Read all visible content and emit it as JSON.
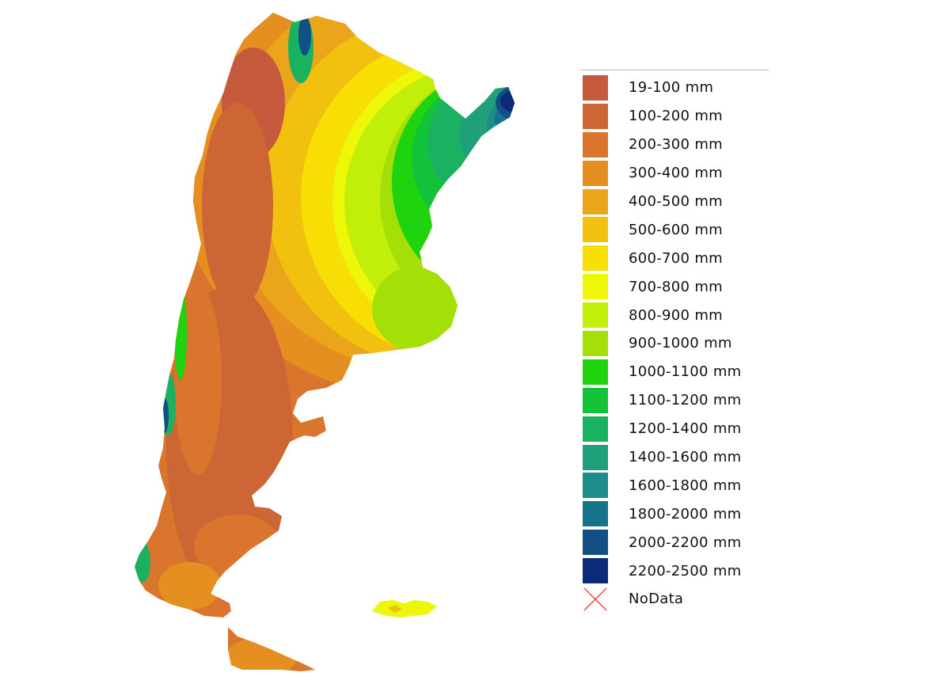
{
  "map": {
    "colors": {
      "c19_100": "#c55a3d",
      "c100_200": "#cd6635",
      "c200_300": "#d9752c",
      "c300_400": "#e48f1f",
      "c400_500": "#eba51b",
      "c500_600": "#f2c10f",
      "c600_700": "#f7de05",
      "c700_800": "#eef708",
      "c800_900": "#c2ef0a",
      "c900_1000": "#a4e008",
      "c1000_1100": "#1fd30f",
      "c1100_1200": "#12c238",
      "c1200_1400": "#1ab261",
      "c1400_1600": "#1fa07a",
      "c1600_1800": "#1d8c8a",
      "c1800_2000": "#17728b",
      "c2000_2200": "#124f84",
      "c2200_2500": "#0b2a77"
    }
  },
  "legend": {
    "items": [
      {
        "label": "19-100 mm",
        "color": "#c55a3d"
      },
      {
        "label": "100-200 mm",
        "color": "#cd6635"
      },
      {
        "label": "200-300 mm",
        "color": "#d9752c"
      },
      {
        "label": "300-400 mm",
        "color": "#e48f1f"
      },
      {
        "label": "400-500 mm",
        "color": "#eba51b"
      },
      {
        "label": "500-600 mm",
        "color": "#f2c10f"
      },
      {
        "label": "600-700 mm",
        "color": "#f7de05"
      },
      {
        "label": "700-800 mm",
        "color": "#eef708"
      },
      {
        "label": "800-900 mm",
        "color": "#c2ef0a"
      },
      {
        "label": "900-1000 mm",
        "color": "#a4e008"
      },
      {
        "label": "1000-1100 mm",
        "color": "#1fd30f"
      },
      {
        "label": "1100-1200 mm",
        "color": "#12c238"
      },
      {
        "label": "1200-1400 mm",
        "color": "#1ab261"
      },
      {
        "label": "1400-1600 mm",
        "color": "#1fa07a"
      },
      {
        "label": "1600-1800 mm",
        "color": "#1d8c8a"
      },
      {
        "label": "1800-2000 mm",
        "color": "#17728b"
      },
      {
        "label": "2000-2200 mm",
        "color": "#124f84"
      },
      {
        "label": "2200-2500 mm",
        "color": "#0b2a77"
      }
    ],
    "nodata": {
      "label": "NoData",
      "color": "#e84a4a"
    }
  }
}
